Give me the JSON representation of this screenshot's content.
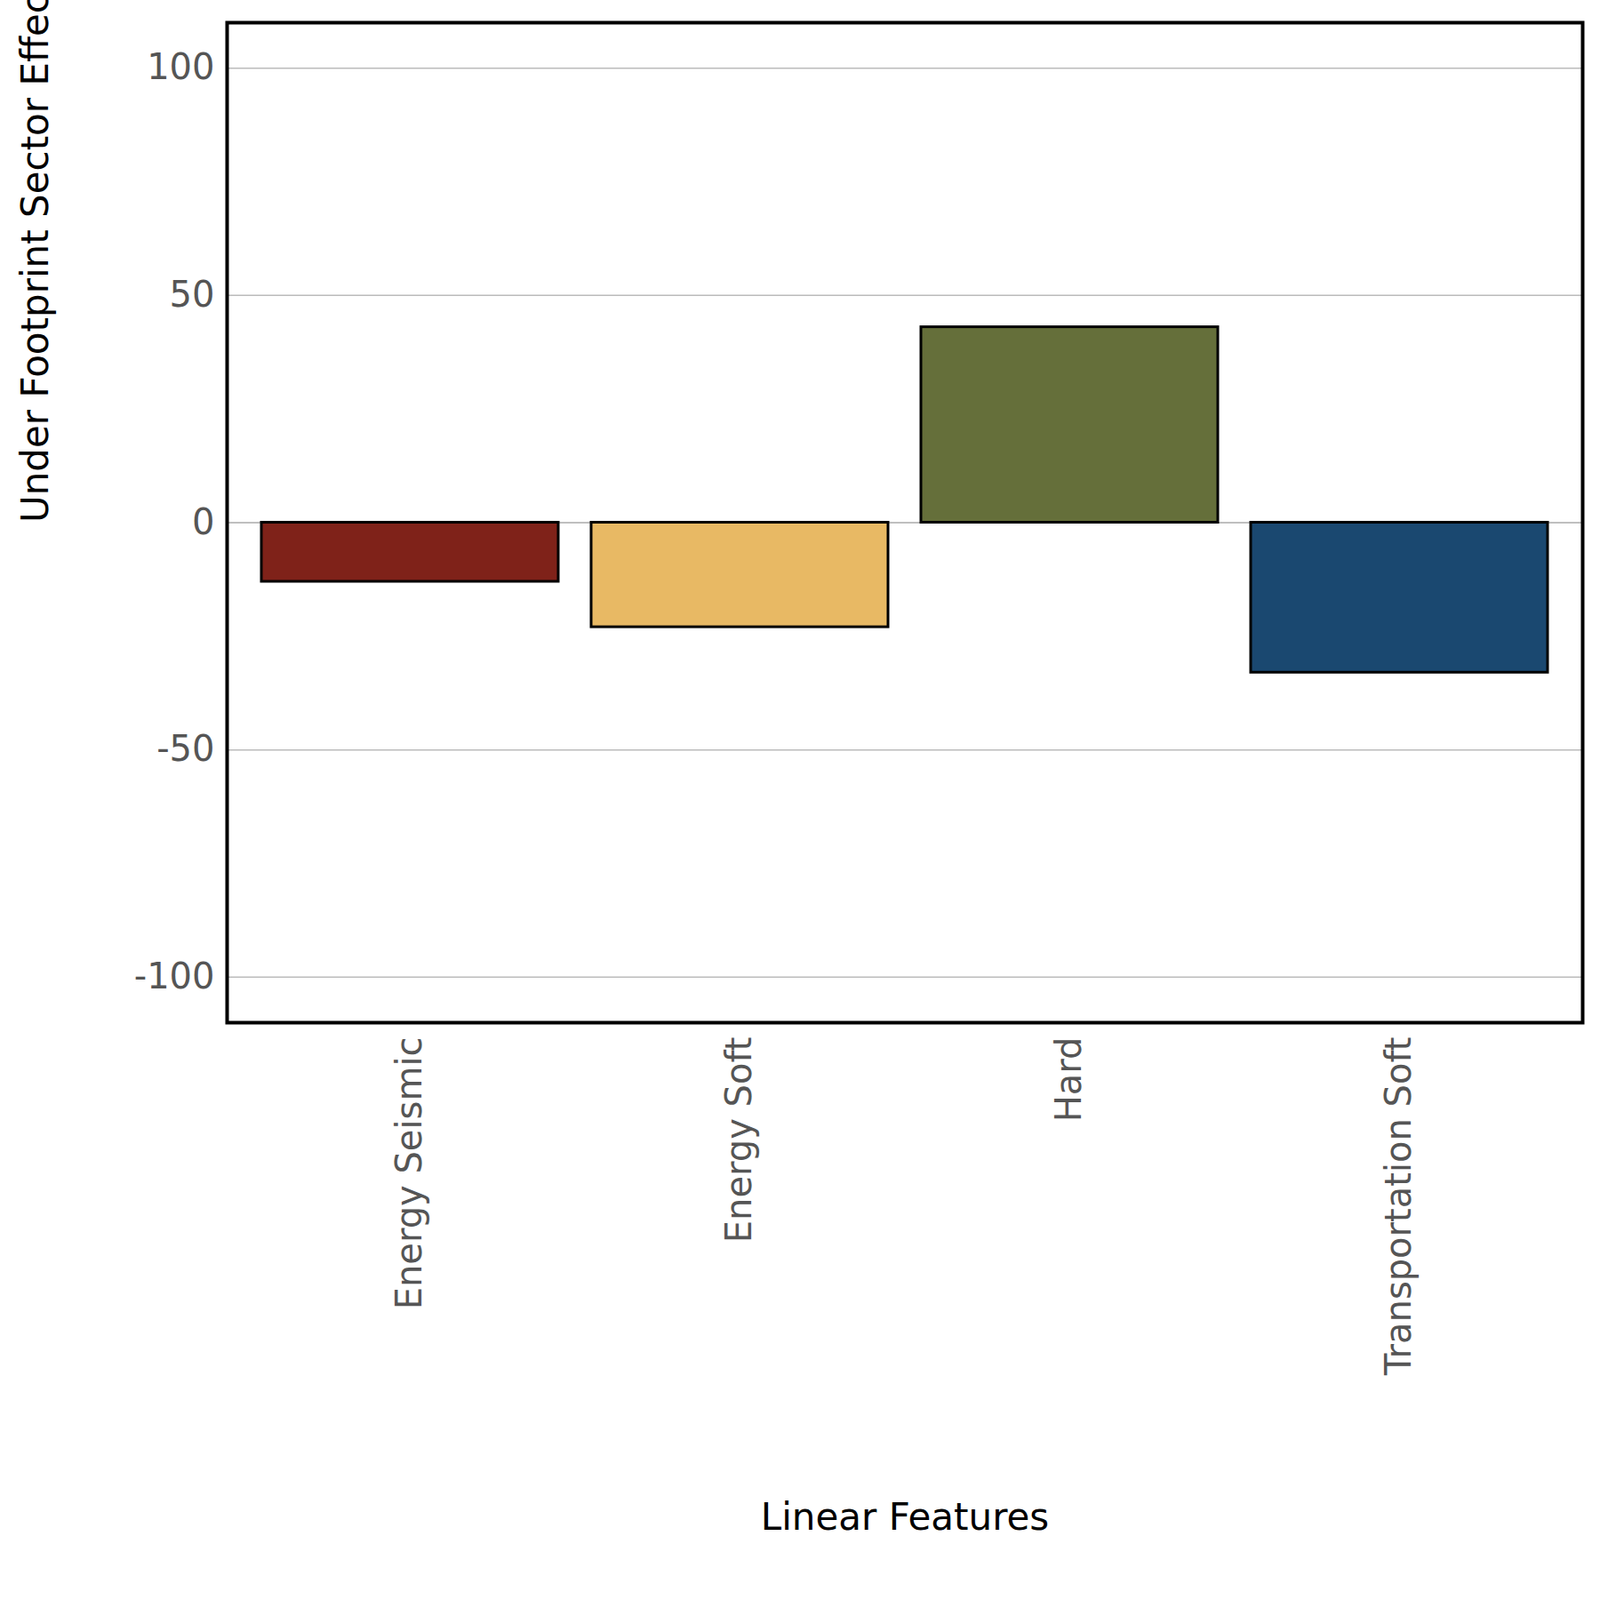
{
  "chart_data": {
    "type": "bar",
    "x_label": "Linear Features",
    "y_label": "Under Footprint Sector Effect (%)",
    "categories": [
      "Energy Seismic",
      "Energy Soft",
      "Hard",
      "Transportation Soft"
    ],
    "values": [
      -13,
      -23,
      43,
      -33
    ],
    "colors": [
      "#7f2219",
      "#e8b964",
      "#656f3a",
      "#1a4870"
    ],
    "ylim": [
      -110,
      110
    ],
    "yticks": [
      -100,
      -50,
      0,
      50,
      100
    ],
    "grid": true
  }
}
